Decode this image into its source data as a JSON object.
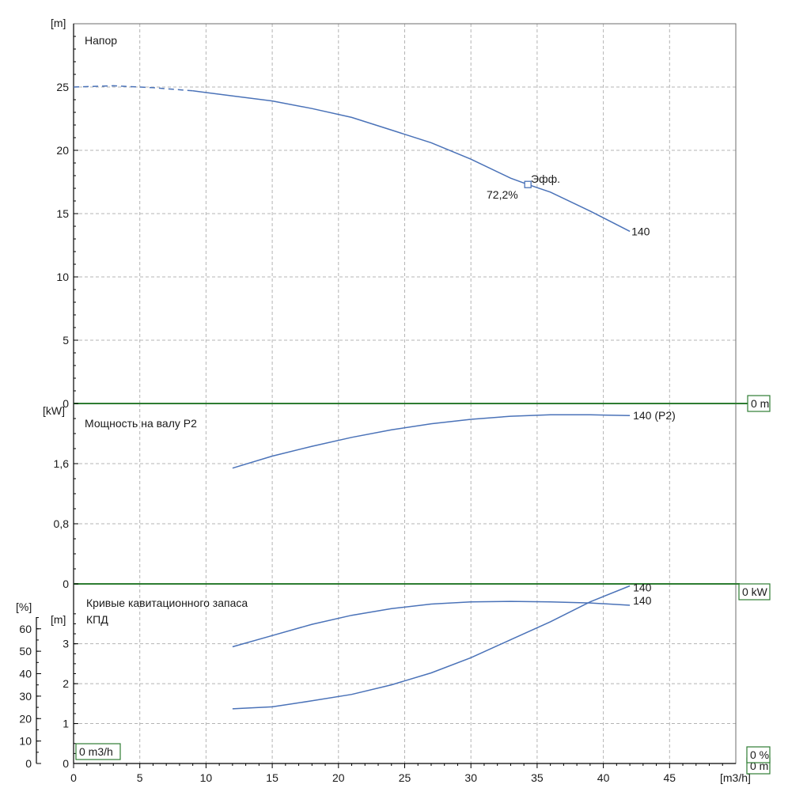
{
  "colors": {
    "curve": "#4a72b8",
    "zero_line": "#2e7d32",
    "grid": "#b4b4b4"
  },
  "chart_data": {
    "type": "line",
    "x_axis": {
      "unit": "[m3/h]",
      "range": [
        0,
        50
      ],
      "ticks": [
        0,
        5,
        10,
        15,
        20,
        25,
        30,
        35,
        40,
        45
      ],
      "tick_labels": [
        "0",
        "5",
        "10",
        "15",
        "20",
        "25",
        "30",
        "35",
        "40",
        "45"
      ]
    },
    "grid": true,
    "panels": [
      {
        "id": "head",
        "title": "Напор",
        "y_unit": "[m]",
        "y_range": [
          0,
          30
        ],
        "y_ticks": [
          0,
          5,
          10,
          15,
          20,
          25
        ],
        "y_tick_labels": [
          "0",
          "5",
          "10",
          "15",
          "20",
          "25"
        ],
        "zero_readout": "0 m",
        "series": [
          {
            "name": "140",
            "label": "140",
            "dashed_until": 9,
            "points": [
              [
                0,
                25
              ],
              [
                3,
                25.1
              ],
              [
                6,
                24.95
              ],
              [
                9,
                24.7
              ],
              [
                12,
                24.3
              ],
              [
                15,
                23.9
              ],
              [
                18,
                23.3
              ],
              [
                21,
                22.6
              ],
              [
                24,
                21.6
              ],
              [
                27,
                20.6
              ],
              [
                30,
                19.3
              ],
              [
                33,
                17.8
              ],
              [
                34.3,
                17.3
              ],
              [
                36,
                16.7
              ],
              [
                39,
                15.2
              ],
              [
                42,
                13.6
              ]
            ]
          }
        ],
        "annotations": [
          {
            "label": "Эфф.",
            "x": 34.3,
            "y": 17.3
          },
          {
            "label": "72,2%",
            "x": 34.3,
            "y": 17.3
          }
        ]
      },
      {
        "id": "power",
        "title": "Мощность на валу P2",
        "y_unit": "[kW]",
        "y_range": [
          0,
          2.4
        ],
        "y_ticks": [
          0,
          0.8,
          1.6
        ],
        "y_tick_labels": [
          "0",
          "0,8",
          "1,6"
        ],
        "zero_readout": "0 kW",
        "series": [
          {
            "name": "140 (P2)",
            "label": "140 (P2)",
            "points": [
              [
                12,
                1.54
              ],
              [
                15,
                1.7
              ],
              [
                18,
                1.83
              ],
              [
                21,
                1.95
              ],
              [
                24,
                2.05
              ],
              [
                27,
                2.13
              ],
              [
                30,
                2.19
              ],
              [
                33,
                2.23
              ],
              [
                36,
                2.25
              ],
              [
                39,
                2.25
              ],
              [
                42,
                2.24
              ]
            ]
          }
        ]
      },
      {
        "id": "npsh_eff",
        "title": "Кривые кавитационного запаса",
        "subtitle": "КПД",
        "left_axis": {
          "unit": "[%]",
          "range": [
            0,
            80
          ],
          "ticks": [
            0,
            10,
            20,
            30,
            40,
            50,
            60
          ],
          "tick_labels": [
            "0",
            "10",
            "20",
            "30",
            "40",
            "50",
            "60"
          ]
        },
        "right_axis": {
          "unit": "[m]",
          "range": [
            0,
            4.5
          ],
          "ticks": [
            0,
            1,
            2,
            3
          ],
          "tick_labels": [
            "0",
            "1",
            "2",
            "3"
          ]
        },
        "zero_readouts": [
          "0 m3/h",
          "0 %",
          "0 m"
        ],
        "series": [
          {
            "name": "КПД 140",
            "label": "140",
            "axis": "percent",
            "points": [
              [
                12,
                52
              ],
              [
                15,
                57
              ],
              [
                18,
                62
              ],
              [
                21,
                66
              ],
              [
                24,
                69
              ],
              [
                27,
                71
              ],
              [
                30,
                72
              ],
              [
                33,
                72.2
              ],
              [
                36,
                72
              ],
              [
                39,
                71.5
              ],
              [
                42,
                70.5
              ]
            ]
          },
          {
            "name": "NPSH 140",
            "label": "140",
            "axis": "meter",
            "points": [
              [
                12,
                1.37
              ],
              [
                15,
                1.42
              ],
              [
                18,
                1.57
              ],
              [
                21,
                1.73
              ],
              [
                24,
                1.97
              ],
              [
                27,
                2.27
              ],
              [
                30,
                2.65
              ],
              [
                33,
                3.1
              ],
              [
                36,
                3.55
              ],
              [
                39,
                4.05
              ],
              [
                42,
                4.45
              ]
            ]
          }
        ]
      }
    ]
  }
}
